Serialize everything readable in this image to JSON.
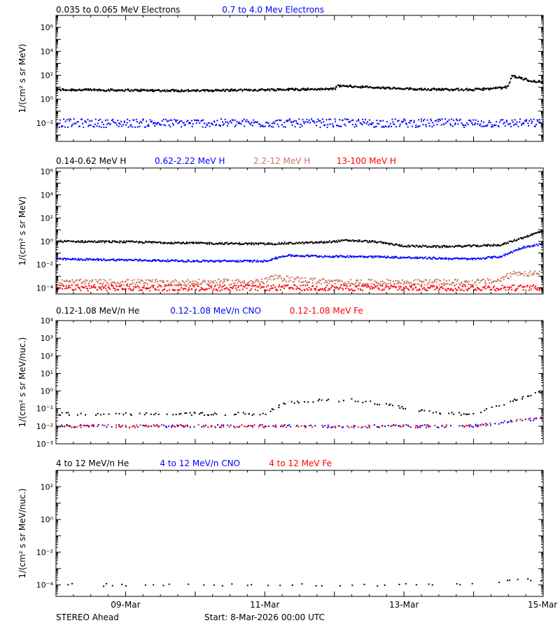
{
  "chart_data": [
    {
      "type": "scatter",
      "log_y": true,
      "ylabel": "1/(cm² s sr MeV)",
      "ylim": [
        0.0003,
        10000000
      ],
      "y_ticks": [
        {
          "value": 0.01,
          "label": "10⁻²"
        },
        {
          "value": 1,
          "label": "10⁰"
        },
        {
          "value": 100,
          "label": "10²"
        },
        {
          "value": 10000,
          "label": "10⁴"
        },
        {
          "value": 1000000,
          "label": "10⁶"
        }
      ],
      "series": [
        {
          "name": "0.035 to 0.065 MeV Electrons",
          "color": "#000000",
          "x": [
            0,
            1,
            2,
            3,
            4,
            4.05,
            5,
            6,
            6.45,
            6.5,
            6.55,
            6.8,
            7
          ],
          "y": [
            6,
            5.5,
            5,
            6,
            7,
            13,
            7,
            6,
            9,
            12,
            90,
            35,
            25
          ]
        },
        {
          "name": "0.7 to 4.0 Mev Electrons",
          "color": "#0000ff",
          "x": [
            0,
            1,
            2,
            3,
            4,
            5,
            6,
            7
          ],
          "y": [
            0.01,
            0.01,
            0.01,
            0.01,
            0.01,
            0.01,
            0.01,
            0.01
          ]
        }
      ]
    },
    {
      "type": "scatter",
      "log_y": true,
      "ylabel": "1/(cm² s sr MeV)",
      "ylim": [
        3e-05,
        2000000
      ],
      "y_ticks": [
        {
          "value": 0.0001,
          "label": "10⁻⁴"
        },
        {
          "value": 0.01,
          "label": "10⁻²"
        },
        {
          "value": 1,
          "label": "10⁰"
        },
        {
          "value": 100,
          "label": "10²"
        },
        {
          "value": 10000,
          "label": "10⁴"
        },
        {
          "value": 1000000,
          "label": "10⁶"
        }
      ],
      "series": [
        {
          "name": "0.14-0.62 MeV H",
          "color": "#000000",
          "x": [
            0,
            1,
            2,
            3,
            3.8,
            4.2,
            4.6,
            5,
            5.5,
            6,
            6.4,
            6.7,
            7
          ],
          "y": [
            1,
            0.9,
            0.7,
            0.6,
            0.8,
            1.2,
            0.9,
            0.4,
            0.35,
            0.4,
            0.5,
            2,
            8
          ]
        },
        {
          "name": "0.62-2.22 MeV H",
          "color": "#0000ff",
          "x": [
            0,
            1,
            2,
            3,
            3.3,
            4,
            4.5,
            5,
            6,
            6.4,
            6.7,
            7
          ],
          "y": [
            0.03,
            0.025,
            0.02,
            0.02,
            0.06,
            0.05,
            0.05,
            0.04,
            0.03,
            0.05,
            0.3,
            0.6
          ]
        },
        {
          "name": "2.2-12 MeV H",
          "color": "#c87860",
          "x": [
            0,
            1,
            2,
            3,
            3.1,
            3.5,
            4,
            5,
            6,
            6.35,
            6.6,
            7
          ],
          "y": [
            0.0003,
            0.0003,
            0.0003,
            0.00035,
            0.0008,
            0.0005,
            0.0003,
            0.0003,
            0.0003,
            0.0004,
            0.002,
            0.0015
          ]
        },
        {
          "name": "13-100 MeV H",
          "color": "#ff0000",
          "x": [
            0,
            1,
            2,
            3,
            4,
            5,
            6,
            7
          ],
          "y": [
            0.0001,
            0.0001,
            0.0001,
            0.0001,
            0.0001,
            0.0001,
            0.0001,
            0.0001
          ]
        }
      ]
    },
    {
      "type": "scatter",
      "log_y": true,
      "ylabel": "1/(cm² s sr MeV/nuc.)",
      "ylim": [
        0.001,
        10000
      ],
      "y_ticks": [
        {
          "value": 0.001,
          "label": "10⁻³"
        },
        {
          "value": 0.01,
          "label": "10⁻²"
        },
        {
          "value": 0.1,
          "label": "10⁻¹"
        },
        {
          "value": 1,
          "label": "10⁰"
        },
        {
          "value": 10,
          "label": "10¹"
        },
        {
          "value": 100,
          "label": "10²"
        },
        {
          "value": 1000,
          "label": "10³"
        },
        {
          "value": 10000,
          "label": "10⁴"
        }
      ],
      "series": [
        {
          "name": "0.12-1.08 MeV/n He",
          "color": "#000000",
          "x": [
            0,
            1,
            2,
            3,
            3.3,
            3.8,
            4.3,
            4.8,
            5.5,
            6,
            6.6,
            7
          ],
          "y": [
            0.05,
            0.05,
            0.05,
            0.05,
            0.2,
            0.3,
            0.3,
            0.15,
            0.05,
            0.05,
            0.3,
            1
          ]
        },
        {
          "name": "0.12-1.08 MeV/n CNO",
          "color": "#0000ff",
          "x": [
            0,
            1,
            2,
            3,
            4,
            5,
            6,
            7
          ],
          "y": [
            0.01,
            0.01,
            0.01,
            0.01,
            0.01,
            0.01,
            0.01,
            0.03
          ]
        },
        {
          "name": "0.12-1.08 MeV Fe",
          "color": "#ff0000",
          "x": [
            0,
            1,
            2,
            3,
            4,
            5,
            6,
            7
          ],
          "y": [
            0.01,
            0.01,
            0.01,
            0.01,
            0.01,
            0.01,
            0.01,
            0.03
          ]
        }
      ]
    },
    {
      "type": "scatter",
      "log_y": true,
      "ylabel": "1/(cm² s sr MeV/nuc.)",
      "ylim": [
        2e-05,
        1000
      ],
      "y_ticks": [
        {
          "value": 0.0001,
          "label": "10⁻⁴"
        },
        {
          "value": 0.01,
          "label": "10⁻²"
        },
        {
          "value": 1,
          "label": "10⁰"
        },
        {
          "value": 100,
          "label": "10²"
        }
      ],
      "series": [
        {
          "name": "4 to 12 MeV/n He",
          "color": "#000000",
          "x": [
            0,
            1,
            2,
            3,
            4,
            5,
            6,
            6.5,
            7
          ],
          "y": [
            0.0001,
            0.0001,
            0.0001,
            0.0001,
            0.0001,
            0.0001,
            0.0001,
            0.0002,
            0.0002
          ]
        },
        {
          "name": "4 to 12 MeV/n CNO",
          "color": "#0000ff",
          "x": [],
          "y": []
        },
        {
          "name": "4 to 12 MeV Fe",
          "color": "#ff0000",
          "x": [],
          "y": []
        }
      ]
    }
  ],
  "x_axis": {
    "xlim": [
      0,
      7
    ],
    "unit": "days since start",
    "ticks": [
      {
        "value": 1,
        "label": "09-Mar"
      },
      {
        "value": 3,
        "label": "11-Mar"
      },
      {
        "value": 5,
        "label": "13-Mar"
      },
      {
        "value": 7,
        "label": "15-Mar"
      }
    ]
  },
  "footer": {
    "left": "STEREO Ahead",
    "start": "Start:  8-Mar-2026 00:00 UTC"
  }
}
